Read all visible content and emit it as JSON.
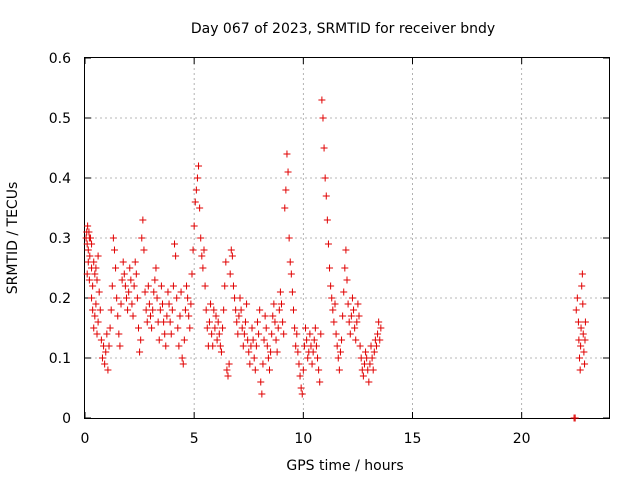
{
  "chart_data": {
    "type": "scatter",
    "title": "Day 067 of 2023, SRMTID for receiver bndy",
    "xlabel": "GPS time / hours",
    "ylabel": "SRMTID / TECUs",
    "xlim": [
      0,
      24
    ],
    "ylim": [
      0,
      0.6
    ],
    "xticks": [
      0,
      5,
      10,
      15,
      20
    ],
    "yticks": [
      0,
      0.1,
      0.2,
      0.3,
      0.4,
      0.5,
      0.6
    ],
    "xtick_labels": [
      "0",
      "5",
      "10",
      "15",
      "20"
    ],
    "ytick_labels": [
      "0",
      "0.1",
      "0.2",
      "0.3",
      "0.4",
      "0.5",
      "0.6"
    ],
    "grid": true,
    "marker": "plus",
    "color": "#e00000",
    "series": [
      {
        "name": "SRMTID",
        "points": [
          [
            0.05,
            0.3
          ],
          [
            0.08,
            0.31
          ],
          [
            0.1,
            0.29
          ],
          [
            0.12,
            0.32
          ],
          [
            0.15,
            0.28
          ],
          [
            0.18,
            0.31
          ],
          [
            0.2,
            0.3
          ],
          [
            0.22,
            0.27
          ],
          [
            0.25,
            0.3
          ],
          [
            0.3,
            0.29
          ],
          [
            0.1,
            0.24
          ],
          [
            0.15,
            0.26
          ],
          [
            0.2,
            0.23
          ],
          [
            0.3,
            0.25
          ],
          [
            0.35,
            0.22
          ],
          [
            0.4,
            0.26
          ],
          [
            0.45,
            0.24
          ],
          [
            0.5,
            0.25
          ],
          [
            0.55,
            0.23
          ],
          [
            0.6,
            0.27
          ],
          [
            0.3,
            0.2
          ],
          [
            0.35,
            0.18
          ],
          [
            0.4,
            0.15
          ],
          [
            0.45,
            0.17
          ],
          [
            0.5,
            0.19
          ],
          [
            0.55,
            0.14
          ],
          [
            0.6,
            0.16
          ],
          [
            0.65,
            0.21
          ],
          [
            0.7,
            0.18
          ],
          [
            0.75,
            0.13
          ],
          [
            0.8,
            0.1
          ],
          [
            0.85,
            0.12
          ],
          [
            0.9,
            0.09
          ],
          [
            0.95,
            0.11
          ],
          [
            1.0,
            0.14
          ],
          [
            1.05,
            0.08
          ],
          [
            1.1,
            0.12
          ],
          [
            1.15,
            0.15
          ],
          [
            1.2,
            0.18
          ],
          [
            1.25,
            0.22
          ],
          [
            1.3,
            0.3
          ],
          [
            1.35,
            0.28
          ],
          [
            1.4,
            0.25
          ],
          [
            1.45,
            0.2
          ],
          [
            1.5,
            0.17
          ],
          [
            1.55,
            0.14
          ],
          [
            1.6,
            0.12
          ],
          [
            1.65,
            0.19
          ],
          [
            1.7,
            0.23
          ],
          [
            1.75,
            0.26
          ],
          [
            1.8,
            0.24
          ],
          [
            1.85,
            0.22
          ],
          [
            1.9,
            0.2
          ],
          [
            1.95,
            0.18
          ],
          [
            2.0,
            0.21
          ],
          [
            2.05,
            0.25
          ],
          [
            2.1,
            0.23
          ],
          [
            2.15,
            0.19
          ],
          [
            2.2,
            0.17
          ],
          [
            2.25,
            0.22
          ],
          [
            2.3,
            0.26
          ],
          [
            2.35,
            0.24
          ],
          [
            2.4,
            0.2
          ],
          [
            2.45,
            0.15
          ],
          [
            2.5,
            0.11
          ],
          [
            2.55,
            0.13
          ],
          [
            2.6,
            0.3
          ],
          [
            2.65,
            0.33
          ],
          [
            2.7,
            0.28
          ],
          [
            2.75,
            0.21
          ],
          [
            2.8,
            0.18
          ],
          [
            2.85,
            0.16
          ],
          [
            2.9,
            0.22
          ],
          [
            2.95,
            0.19
          ],
          [
            3.0,
            0.17
          ],
          [
            3.05,
            0.15
          ],
          [
            3.1,
            0.18
          ],
          [
            3.15,
            0.21
          ],
          [
            3.2,
            0.23
          ],
          [
            3.25,
            0.25
          ],
          [
            3.3,
            0.2
          ],
          [
            3.35,
            0.16
          ],
          [
            3.4,
            0.13
          ],
          [
            3.45,
            0.18
          ],
          [
            3.5,
            0.22
          ],
          [
            3.55,
            0.19
          ],
          [
            3.6,
            0.16
          ],
          [
            3.65,
            0.14
          ],
          [
            3.7,
            0.12
          ],
          [
            3.75,
            0.17
          ],
          [
            3.8,
            0.21
          ],
          [
            3.85,
            0.19
          ],
          [
            3.9,
            0.16
          ],
          [
            3.95,
            0.14
          ],
          [
            4.0,
            0.18
          ],
          [
            4.05,
            0.22
          ],
          [
            4.1,
            0.29
          ],
          [
            4.15,
            0.27
          ],
          [
            4.2,
            0.2
          ],
          [
            4.25,
            0.15
          ],
          [
            4.3,
            0.12
          ],
          [
            4.35,
            0.17
          ],
          [
            4.4,
            0.21
          ],
          [
            4.45,
            0.1
          ],
          [
            4.5,
            0.09
          ],
          [
            4.55,
            0.13
          ],
          [
            4.6,
            0.18
          ],
          [
            4.65,
            0.22
          ],
          [
            4.7,
            0.2
          ],
          [
            4.75,
            0.17
          ],
          [
            4.8,
            0.15
          ],
          [
            4.85,
            0.19
          ],
          [
            4.9,
            0.24
          ],
          [
            4.95,
            0.28
          ],
          [
            5.0,
            0.32
          ],
          [
            5.05,
            0.36
          ],
          [
            5.1,
            0.38
          ],
          [
            5.15,
            0.4
          ],
          [
            5.2,
            0.42
          ],
          [
            5.25,
            0.35
          ],
          [
            5.3,
            0.3
          ],
          [
            5.35,
            0.27
          ],
          [
            5.4,
            0.25
          ],
          [
            5.45,
            0.28
          ],
          [
            5.5,
            0.22
          ],
          [
            5.55,
            0.18
          ],
          [
            5.6,
            0.15
          ],
          [
            5.65,
            0.12
          ],
          [
            5.7,
            0.16
          ],
          [
            5.75,
            0.19
          ],
          [
            5.8,
            0.14
          ],
          [
            5.85,
            0.12
          ],
          [
            5.9,
            0.18
          ],
          [
            5.95,
            0.15
          ],
          [
            6.0,
            0.17
          ],
          [
            6.05,
            0.13
          ],
          [
            6.1,
            0.16
          ],
          [
            6.15,
            0.14
          ],
          [
            6.2,
            0.12
          ],
          [
            6.25,
            0.11
          ],
          [
            6.3,
            0.15
          ],
          [
            6.35,
            0.18
          ],
          [
            6.4,
            0.22
          ],
          [
            6.45,
            0.26
          ],
          [
            6.5,
            0.08
          ],
          [
            6.55,
            0.07
          ],
          [
            6.6,
            0.09
          ],
          [
            6.65,
            0.24
          ],
          [
            6.7,
            0.28
          ],
          [
            6.75,
            0.27
          ],
          [
            6.8,
            0.22
          ],
          [
            6.85,
            0.2
          ],
          [
            6.9,
            0.18
          ],
          [
            6.95,
            0.16
          ],
          [
            7.0,
            0.14
          ],
          [
            7.05,
            0.17
          ],
          [
            7.1,
            0.2
          ],
          [
            7.15,
            0.18
          ],
          [
            7.2,
            0.15
          ],
          [
            7.25,
            0.12
          ],
          [
            7.3,
            0.14
          ],
          [
            7.35,
            0.16
          ],
          [
            7.4,
            0.19
          ],
          [
            7.45,
            0.13
          ],
          [
            7.5,
            0.11
          ],
          [
            7.55,
            0.09
          ],
          [
            7.6,
            0.12
          ],
          [
            7.65,
            0.15
          ],
          [
            7.7,
            0.13
          ],
          [
            7.75,
            0.1
          ],
          [
            7.8,
            0.08
          ],
          [
            7.85,
            0.12
          ],
          [
            7.9,
            0.16
          ],
          [
            7.95,
            0.14
          ],
          [
            8.0,
            0.18
          ],
          [
            8.05,
            0.06
          ],
          [
            8.1,
            0.04
          ],
          [
            8.15,
            0.09
          ],
          [
            8.2,
            0.13
          ],
          [
            8.25,
            0.17
          ],
          [
            8.3,
            0.15
          ],
          [
            8.35,
            0.12
          ],
          [
            8.4,
            0.1
          ],
          [
            8.45,
            0.08
          ],
          [
            8.5,
            0.11
          ],
          [
            8.55,
            0.14
          ],
          [
            8.6,
            0.17
          ],
          [
            8.65,
            0.19
          ],
          [
            8.7,
            0.16
          ],
          [
            8.75,
            0.13
          ],
          [
            8.8,
            0.11
          ],
          [
            8.85,
            0.15
          ],
          [
            8.9,
            0.18
          ],
          [
            8.95,
            0.21
          ],
          [
            9.0,
            0.19
          ],
          [
            9.05,
            0.16
          ],
          [
            9.1,
            0.14
          ],
          [
            9.15,
            0.35
          ],
          [
            9.2,
            0.38
          ],
          [
            9.25,
            0.44
          ],
          [
            9.3,
            0.41
          ],
          [
            9.35,
            0.3
          ],
          [
            9.4,
            0.26
          ],
          [
            9.45,
            0.24
          ],
          [
            9.5,
            0.21
          ],
          [
            9.55,
            0.18
          ],
          [
            9.6,
            0.15
          ],
          [
            9.65,
            0.12
          ],
          [
            9.7,
            0.14
          ],
          [
            9.75,
            0.11
          ],
          [
            9.8,
            0.09
          ],
          [
            9.85,
            0.07
          ],
          [
            9.9,
            0.05
          ],
          [
            9.95,
            0.04
          ],
          [
            10.0,
            0.08
          ],
          [
            10.05,
            0.12
          ],
          [
            10.1,
            0.15
          ],
          [
            10.15,
            0.13
          ],
          [
            10.2,
            0.1
          ],
          [
            10.25,
            0.11
          ],
          [
            10.3,
            0.14
          ],
          [
            10.35,
            0.12
          ],
          [
            10.4,
            0.09
          ],
          [
            10.45,
            0.11
          ],
          [
            10.5,
            0.13
          ],
          [
            10.55,
            0.15
          ],
          [
            10.6,
            0.12
          ],
          [
            10.65,
            0.1
          ],
          [
            10.7,
            0.08
          ],
          [
            10.75,
            0.06
          ],
          [
            10.8,
            0.14
          ],
          [
            10.85,
            0.53
          ],
          [
            10.9,
            0.5
          ],
          [
            10.95,
            0.45
          ],
          [
            11.0,
            0.4
          ],
          [
            11.05,
            0.37
          ],
          [
            11.1,
            0.33
          ],
          [
            11.15,
            0.29
          ],
          [
            11.2,
            0.25
          ],
          [
            11.25,
            0.22
          ],
          [
            11.3,
            0.2
          ],
          [
            11.35,
            0.18
          ],
          [
            11.4,
            0.16
          ],
          [
            11.45,
            0.19
          ],
          [
            11.5,
            0.14
          ],
          [
            11.55,
            0.12
          ],
          [
            11.6,
            0.1
          ],
          [
            11.65,
            0.08
          ],
          [
            11.7,
            0.11
          ],
          [
            11.75,
            0.13
          ],
          [
            11.8,
            0.17
          ],
          [
            11.85,
            0.21
          ],
          [
            11.9,
            0.25
          ],
          [
            11.95,
            0.28
          ],
          [
            12.0,
            0.23
          ],
          [
            12.05,
            0.19
          ],
          [
            12.1,
            0.16
          ],
          [
            12.15,
            0.14
          ],
          [
            12.2,
            0.17
          ],
          [
            12.25,
            0.2
          ],
          [
            12.3,
            0.18
          ],
          [
            12.35,
            0.15
          ],
          [
            12.4,
            0.13
          ],
          [
            12.45,
            0.16
          ],
          [
            12.5,
            0.19
          ],
          [
            12.55,
            0.17
          ],
          [
            12.6,
            0.12
          ],
          [
            12.65,
            0.1
          ],
          [
            12.7,
            0.08
          ],
          [
            12.75,
            0.07
          ],
          [
            12.8,
            0.09
          ],
          [
            12.85,
            0.11
          ],
          [
            12.9,
            0.1
          ],
          [
            12.95,
            0.08
          ],
          [
            13.0,
            0.06
          ],
          [
            13.05,
            0.09
          ],
          [
            13.1,
            0.12
          ],
          [
            13.15,
            0.1
          ],
          [
            13.2,
            0.08
          ],
          [
            13.25,
            0.11
          ],
          [
            13.3,
            0.13
          ],
          [
            13.35,
            0.12
          ],
          [
            13.4,
            0.14
          ],
          [
            13.45,
            0.16
          ],
          [
            13.5,
            0.13
          ],
          [
            13.55,
            0.15
          ],
          [
            22.4,
            0.0
          ],
          [
            22.45,
            0.0
          ],
          [
            22.5,
            0.18
          ],
          [
            22.55,
            0.2
          ],
          [
            22.6,
            0.16
          ],
          [
            22.62,
            0.13
          ],
          [
            22.65,
            0.1
          ],
          [
            22.68,
            0.08
          ],
          [
            22.7,
            0.12
          ],
          [
            22.72,
            0.15
          ],
          [
            22.75,
            0.22
          ],
          [
            22.78,
            0.24
          ],
          [
            22.8,
            0.19
          ],
          [
            22.82,
            0.14
          ],
          [
            22.85,
            0.11
          ],
          [
            22.88,
            0.09
          ],
          [
            22.9,
            0.13
          ],
          [
            22.92,
            0.16
          ]
        ]
      }
    ]
  }
}
